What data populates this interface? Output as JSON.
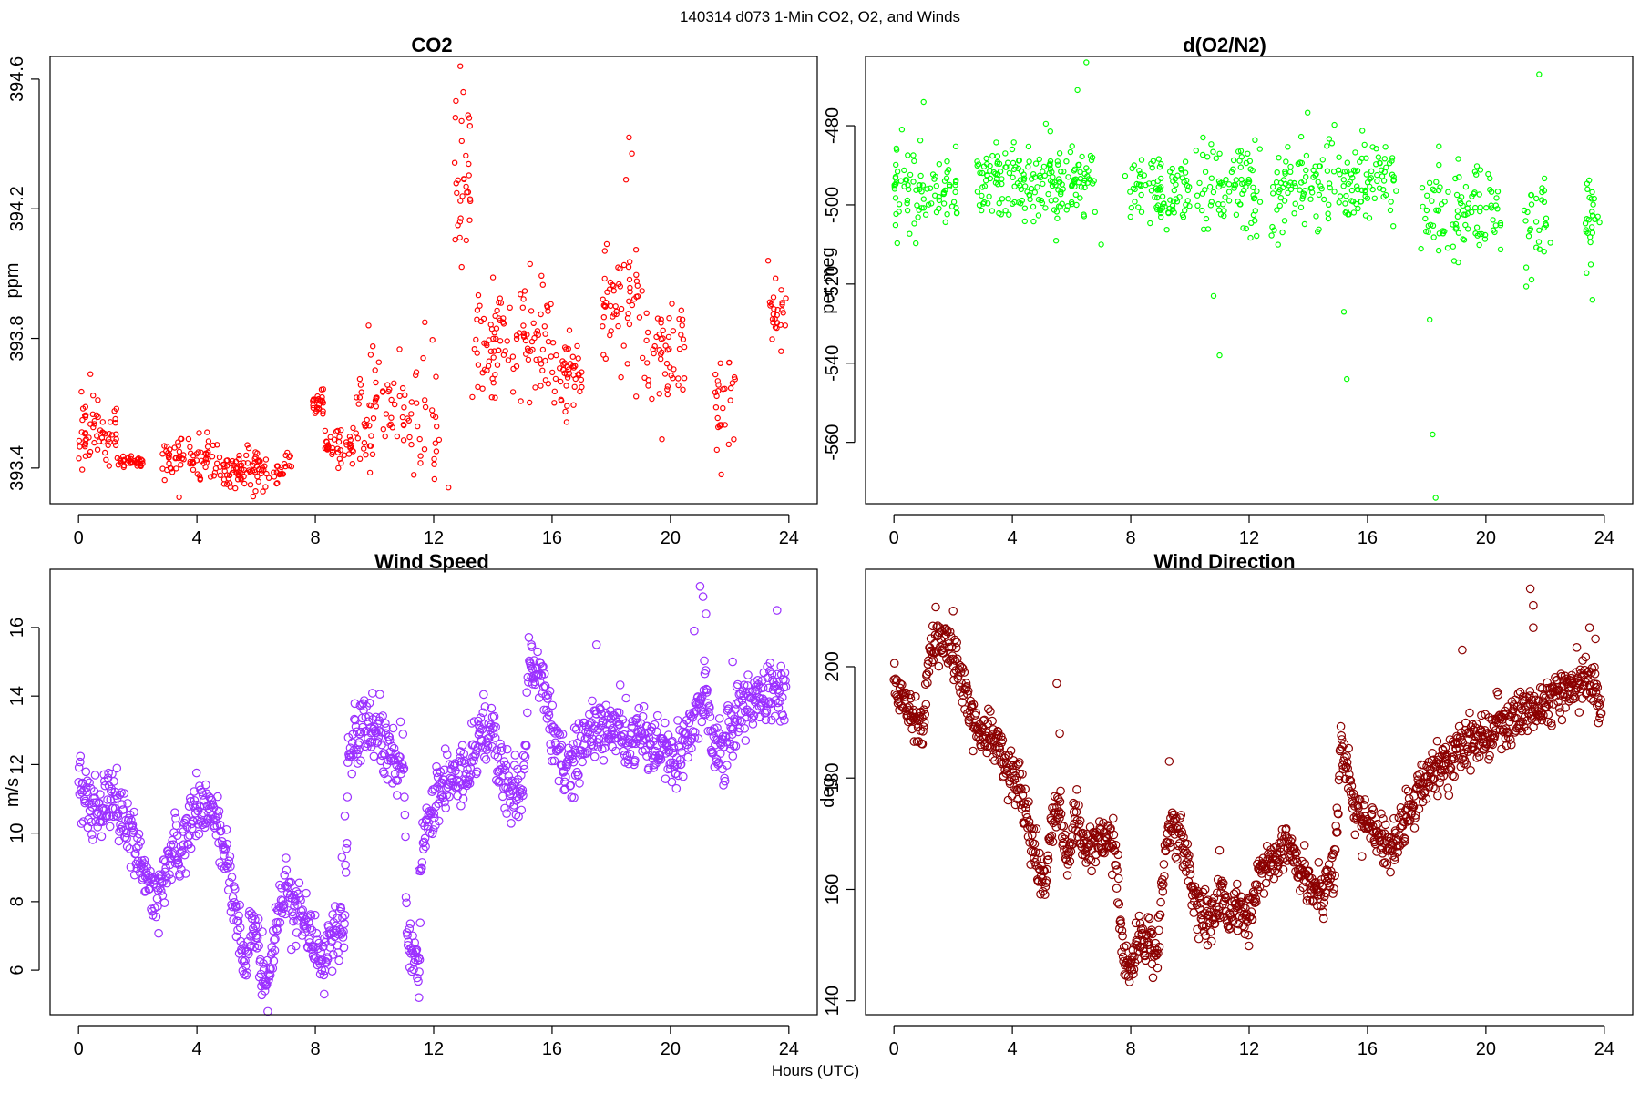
{
  "figure": {
    "title": "140314   d073   1-Min CO2, O2, and Winds",
    "xlabel": "Hours (UTC)"
  },
  "chart_data": [
    {
      "type": "scatter",
      "title": "CO2",
      "xlabel": "",
      "ylabel": "ppm",
      "color": "#ff0000",
      "xlim": [
        -0.96,
        24.96
      ],
      "ylim": [
        393.29,
        394.67
      ],
      "xticks": [
        0,
        4,
        8,
        12,
        16,
        20,
        24
      ],
      "yticks": [
        393.4,
        393.8,
        394.2,
        394.6
      ],
      "ytick_labels": [
        "393.4",
        "393.8",
        "394.2",
        "394.6"
      ],
      "segments": [
        {
          "x0": 0.0,
          "x1": 1.3,
          "level": 393.52,
          "spread": 0.05,
          "n": 60
        },
        {
          "x0": 1.3,
          "x1": 2.2,
          "level": 393.42,
          "spread": 0.01,
          "n": 35
        },
        {
          "x0": 2.8,
          "x1": 4.4,
          "level": 393.43,
          "spread": 0.03,
          "n": 65
        },
        {
          "x0": 4.4,
          "x1": 7.2,
          "level": 393.39,
          "spread": 0.03,
          "n": 110
        },
        {
          "x0": 7.9,
          "x1": 8.3,
          "level": 393.6,
          "spread": 0.02,
          "n": 25
        },
        {
          "x0": 8.3,
          "x1": 9.3,
          "level": 393.47,
          "spread": 0.03,
          "n": 40
        },
        {
          "x0": 9.3,
          "x1": 12.2,
          "level": 393.56,
          "spread": 0.1,
          "n": 90
        },
        {
          "x0": 12.7,
          "x1": 13.3,
          "level": 394.3,
          "spread": 0.15,
          "n": 30
        },
        {
          "x0": 13.3,
          "x1": 16.0,
          "level": 393.8,
          "spread": 0.09,
          "n": 110
        },
        {
          "x0": 16.0,
          "x1": 17.0,
          "level": 393.7,
          "spread": 0.06,
          "n": 45
        },
        {
          "x0": 17.7,
          "x1": 19.0,
          "level": 393.88,
          "spread": 0.1,
          "n": 55
        },
        {
          "x0": 19.0,
          "x1": 20.5,
          "level": 393.76,
          "spread": 0.09,
          "n": 55
        },
        {
          "x0": 21.5,
          "x1": 22.2,
          "level": 393.58,
          "spread": 0.1,
          "n": 28
        },
        {
          "x0": 23.3,
          "x1": 23.9,
          "level": 393.9,
          "spread": 0.06,
          "n": 25
        }
      ],
      "outliers": [
        [
          0.4,
          393.69
        ],
        [
          13.0,
          394.56
        ],
        [
          13.2,
          394.48
        ],
        [
          18.6,
          394.42
        ],
        [
          18.7,
          394.37
        ],
        [
          18.5,
          394.29
        ],
        [
          12.9,
          394.64
        ],
        [
          9.8,
          393.84
        ],
        [
          11.7,
          393.85
        ],
        [
          23.3,
          394.04
        ],
        [
          12.5,
          393.34
        ],
        [
          3.4,
          393.31
        ]
      ]
    },
    {
      "type": "scatter",
      "title": "d(O2/N2)",
      "xlabel": "",
      "ylabel": "per meg",
      "color": "#00ff00",
      "xlim": [
        -0.96,
        24.96
      ],
      "ylim": [
        -575.5,
        -462.5
      ],
      "xticks": [
        0,
        4,
        8,
        12,
        16,
        20,
        24
      ],
      "yticks": [
        -560,
        -540,
        -520,
        -500,
        -480
      ],
      "ytick_labels": [
        "-560",
        "-540",
        "-520",
        "-500",
        "-480"
      ],
      "segments": [
        {
          "x0": 0.0,
          "x1": 2.2,
          "level": -497,
          "spread": 5.5,
          "n": 90
        },
        {
          "x0": 2.8,
          "x1": 6.8,
          "level": -494,
          "spread": 4.5,
          "n": 190
        },
        {
          "x0": 7.8,
          "x1": 10.0,
          "level": -496,
          "spread": 5.0,
          "n": 90
        },
        {
          "x0": 10.2,
          "x1": 12.4,
          "level": -496,
          "spread": 6.0,
          "n": 85
        },
        {
          "x0": 12.7,
          "x1": 15.8,
          "level": -495,
          "spread": 5.5,
          "n": 120
        },
        {
          "x0": 15.8,
          "x1": 17.0,
          "level": -493,
          "spread": 5.0,
          "n": 50
        },
        {
          "x0": 17.8,
          "x1": 20.5,
          "level": -501,
          "spread": 6.0,
          "n": 100
        },
        {
          "x0": 21.3,
          "x1": 22.2,
          "level": -507,
          "spread": 8.0,
          "n": 30
        },
        {
          "x0": 23.3,
          "x1": 23.9,
          "level": -502,
          "spread": 7.0,
          "n": 25
        }
      ],
      "outliers": [
        [
          1.0,
          -474
        ],
        [
          6.5,
          -464
        ],
        [
          6.2,
          -471
        ],
        [
          11.0,
          -538
        ],
        [
          10.8,
          -523
        ],
        [
          15.3,
          -544
        ],
        [
          15.2,
          -527
        ],
        [
          18.2,
          -558
        ],
        [
          18.3,
          -574
        ],
        [
          18.1,
          -529
        ],
        [
          21.8,
          -467
        ],
        [
          23.6,
          -524
        ],
        [
          7.0,
          -510
        ]
      ]
    },
    {
      "type": "scatter",
      "title": "Wind Speed",
      "xlabel": "",
      "ylabel": "m/s",
      "color": "#9b30ff",
      "xlim": [
        -0.96,
        24.96
      ],
      "ylim": [
        4.7,
        17.7
      ],
      "xticks": [
        0,
        4,
        8,
        12,
        16,
        20,
        24
      ],
      "yticks": [
        6,
        8,
        10,
        12,
        14,
        16
      ],
      "ytick_labels": [
        "6",
        "8",
        "10",
        "12",
        "14",
        "16"
      ],
      "path": [
        [
          0.0,
          11.8
        ],
        [
          0.5,
          10.6
        ],
        [
          1.0,
          11.1
        ],
        [
          1.5,
          10.4
        ],
        [
          2.0,
          9.5
        ],
        [
          2.5,
          8.0
        ],
        [
          2.8,
          8.4
        ],
        [
          3.1,
          9.4
        ],
        [
          3.5,
          9.6
        ],
        [
          4.0,
          11.0
        ],
        [
          4.5,
          10.6
        ],
        [
          5.0,
          9.4
        ],
        [
          5.3,
          7.9
        ],
        [
          5.6,
          6.0
        ],
        [
          5.9,
          7.5
        ],
        [
          6.2,
          6.0
        ],
        [
          6.4,
          5.6
        ],
        [
          6.7,
          7.2
        ],
        [
          7.0,
          8.5
        ],
        [
          7.4,
          7.7
        ],
        [
          7.8,
          7.2
        ],
        [
          8.2,
          6.4
        ],
        [
          8.4,
          6.7
        ],
        [
          8.8,
          7.3
        ],
        [
          9.0,
          7.2
        ],
        [
          9.1,
          12.4
        ],
        [
          9.6,
          12.9
        ],
        [
          10.0,
          13.0
        ],
        [
          10.4,
          12.4
        ],
        [
          10.8,
          12.0
        ],
        [
          11.0,
          11.8
        ],
        [
          11.1,
          6.8
        ],
        [
          11.4,
          6.3
        ],
        [
          11.5,
          5.8
        ],
        [
          11.6,
          10.0
        ],
        [
          12.0,
          10.8
        ],
        [
          12.4,
          11.5
        ],
        [
          12.8,
          11.8
        ],
        [
          13.2,
          11.6
        ],
        [
          13.6,
          12.9
        ],
        [
          14.0,
          13.0
        ],
        [
          14.2,
          11.8
        ],
        [
          14.6,
          11.4
        ],
        [
          15.0,
          11.2
        ],
        [
          15.2,
          14.6
        ],
        [
          15.6,
          14.6
        ],
        [
          16.0,
          13.0
        ],
        [
          16.4,
          12.0
        ],
        [
          16.8,
          12.0
        ],
        [
          17.0,
          12.6
        ],
        [
          17.4,
          13.2
        ],
        [
          17.8,
          13.0
        ],
        [
          18.2,
          13.3
        ],
        [
          18.6,
          12.7
        ],
        [
          19.0,
          13.0
        ],
        [
          19.4,
          12.6
        ],
        [
          19.8,
          12.5
        ],
        [
          20.2,
          12.1
        ],
        [
          20.6,
          12.9
        ],
        [
          20.9,
          13.6
        ],
        [
          21.2,
          14.2
        ],
        [
          21.4,
          12.6
        ],
        [
          21.8,
          12.4
        ],
        [
          22.2,
          13.6
        ],
        [
          22.6,
          13.8
        ],
        [
          23.0,
          14.0
        ],
        [
          23.4,
          14.1
        ],
        [
          23.9,
          14.0
        ]
      ],
      "spread": 0.45,
      "n": 1440,
      "outliers": [
        [
          21.0,
          17.2
        ],
        [
          21.1,
          16.9
        ],
        [
          21.2,
          16.4
        ],
        [
          20.8,
          15.9
        ],
        [
          23.6,
          16.5
        ],
        [
          15.3,
          15.5
        ],
        [
          17.5,
          15.5
        ],
        [
          8.9,
          9.3
        ],
        [
          8.3,
          5.3
        ],
        [
          9.0,
          10.5
        ],
        [
          11.5,
          8.9
        ],
        [
          11.5,
          5.2
        ],
        [
          22.1,
          15.0
        ]
      ]
    },
    {
      "type": "scatter",
      "title": "Wind Direction",
      "xlabel": "",
      "ylabel": "deg",
      "color": "#8b0000",
      "xlim": [
        -0.96,
        24.96
      ],
      "ylim": [
        137.5,
        217.5
      ],
      "xticks": [
        0,
        4,
        8,
        12,
        16,
        20,
        24
      ],
      "yticks": [
        140,
        160,
        180,
        200
      ],
      "ytick_labels": [
        "140",
        "160",
        "180",
        "200"
      ],
      "path": [
        [
          0.0,
          197
        ],
        [
          0.3,
          194
        ],
        [
          0.6,
          192
        ],
        [
          1.0,
          190
        ],
        [
          1.2,
          203
        ],
        [
          1.5,
          206
        ],
        [
          1.9,
          203
        ],
        [
          2.2,
          200
        ],
        [
          2.5,
          193
        ],
        [
          2.8,
          189
        ],
        [
          3.2,
          188
        ],
        [
          3.6,
          185
        ],
        [
          4.0,
          181
        ],
        [
          4.3,
          178
        ],
        [
          4.6,
          172
        ],
        [
          4.9,
          163
        ],
        [
          5.1,
          161
        ],
        [
          5.3,
          172
        ],
        [
          5.6,
          175
        ],
        [
          5.9,
          164
        ],
        [
          6.1,
          174
        ],
        [
          6.4,
          167
        ],
        [
          6.8,
          168
        ],
        [
          7.2,
          169
        ],
        [
          7.5,
          167
        ],
        [
          7.7,
          150
        ],
        [
          7.9,
          145
        ],
        [
          8.2,
          150
        ],
        [
          8.6,
          152
        ],
        [
          8.9,
          148
        ],
        [
          9.1,
          165
        ],
        [
          9.4,
          172
        ],
        [
          9.8,
          168
        ],
        [
          10.1,
          158
        ],
        [
          10.4,
          155
        ],
        [
          10.8,
          156
        ],
        [
          11.1,
          160
        ],
        [
          11.3,
          154
        ],
        [
          11.6,
          157
        ],
        [
          12.0,
          154
        ],
        [
          12.3,
          163
        ],
        [
          12.7,
          165
        ],
        [
          13.1,
          167
        ],
        [
          13.4,
          168
        ],
        [
          13.7,
          163
        ],
        [
          14.1,
          161
        ],
        [
          14.5,
          160
        ],
        [
          14.9,
          165
        ],
        [
          15.1,
          187
        ],
        [
          15.3,
          181
        ],
        [
          15.6,
          174
        ],
        [
          16.0,
          171
        ],
        [
          16.4,
          170
        ],
        [
          16.8,
          168
        ],
        [
          17.2,
          172
        ],
        [
          17.6,
          176
        ],
        [
          18.0,
          180
        ],
        [
          18.4,
          182
        ],
        [
          18.8,
          183
        ],
        [
          19.2,
          186
        ],
        [
          19.6,
          187
        ],
        [
          20.0,
          187
        ],
        [
          20.4,
          190
        ],
        [
          20.8,
          190
        ],
        [
          21.2,
          191
        ],
        [
          21.6,
          192
        ],
        [
          22.0,
          193
        ],
        [
          22.4,
          195
        ],
        [
          22.8,
          196
        ],
        [
          23.2,
          198
        ],
        [
          23.6,
          197
        ],
        [
          23.9,
          193
        ]
      ],
      "spread": 2.2,
      "n": 1440,
      "outliers": [
        [
          21.5,
          214
        ],
        [
          21.6,
          211
        ],
        [
          21.6,
          207
        ],
        [
          23.5,
          207
        ],
        [
          23.7,
          205
        ],
        [
          19.2,
          203
        ],
        [
          5.5,
          197
        ],
        [
          5.6,
          188
        ],
        [
          9.3,
          183
        ],
        [
          2.0,
          210
        ],
        [
          11.0,
          167
        ],
        [
          17.3,
          178
        ]
      ]
    }
  ]
}
